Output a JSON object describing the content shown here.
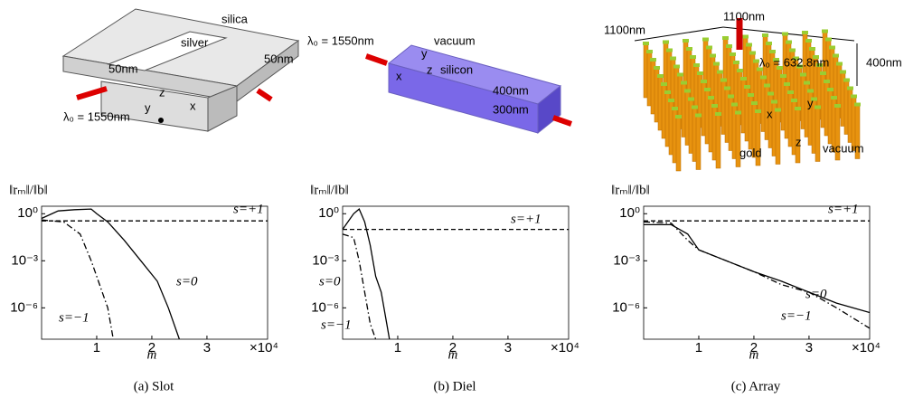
{
  "figure": {
    "panels": [
      {
        "caption": "(a) Slot",
        "labels": [
          "silica",
          "silver",
          "50nm",
          "50nm",
          "λ₀ = 1550nm",
          "z",
          "y",
          "x"
        ]
      },
      {
        "caption": "(b) Diel",
        "labels": [
          "λ₀ = 1550nm",
          "vacuum",
          "x",
          "y",
          "z",
          "silicon",
          "400nm",
          "300nm"
        ]
      },
      {
        "caption": "(c) Array",
        "labels": [
          "1100nm",
          "1100nm",
          "λ₀ = 632.8nm",
          "400nm",
          "x",
          "y",
          "z",
          "gold",
          "vacuum"
        ]
      }
    ]
  },
  "chart_data": [
    {
      "type": "line",
      "log_y": true,
      "y_label": "‖rₘ‖/‖b‖",
      "x_label": "m",
      "x_multiplier": "×10⁴",
      "xlim": [
        0,
        4.1
      ],
      "xticks": [
        1,
        2,
        3
      ],
      "ylim": [
        1e-08,
        3
      ],
      "yticks": [
        {
          "value": 1e-06,
          "label": "10⁻⁶"
        },
        {
          "value": 0.001,
          "label": "10⁻³"
        },
        {
          "value": 1,
          "label": "10⁰"
        }
      ],
      "series": [
        {
          "name": "s=+1",
          "color": "#000000",
          "style": "dashed",
          "x": [
            0,
            4.1
          ],
          "values": [
            0.35,
            0.35
          ]
        },
        {
          "name": "s=0",
          "color": "#000000",
          "style": "solid",
          "x": [
            0,
            0.3,
            0.6,
            0.9,
            1.0,
            1.2,
            1.5,
            1.8,
            2.1,
            2.3,
            2.5
          ],
          "values": [
            0.5,
            1.5,
            1.8,
            2,
            1,
            0.3,
            0.02,
            0.001,
            5e-05,
            1e-06,
            1e-08
          ]
        },
        {
          "name": "s=−1",
          "color": "#000000",
          "style": "dashdot",
          "x": [
            0,
            0.4,
            0.7,
            0.9,
            1.0,
            1.1,
            1.2,
            1.3
          ],
          "values": [
            0.4,
            0.3,
            0.05,
            0.001,
            0.0001,
            1e-05,
            1e-06,
            1e-08
          ]
        }
      ]
    },
    {
      "type": "line",
      "log_y": true,
      "y_label": "‖rₘ‖/‖b‖",
      "x_label": "m",
      "x_multiplier": "×10⁴",
      "xlim": [
        0,
        4.1
      ],
      "xticks": [
        1,
        2,
        3
      ],
      "ylim": [
        1e-08,
        3
      ],
      "yticks": [
        {
          "value": 1e-06,
          "label": "10⁻⁶"
        },
        {
          "value": 0.001,
          "label": "10⁻³"
        },
        {
          "value": 1,
          "label": "10⁰"
        }
      ],
      "series": [
        {
          "name": "s=+1",
          "color": "#000000",
          "style": "dashed",
          "x": [
            0,
            4.1
          ],
          "values": [
            0.1,
            0.1
          ]
        },
        {
          "name": "s=0",
          "color": "#000000",
          "style": "solid",
          "x": [
            0,
            0.2,
            0.3,
            0.4,
            0.5,
            0.6,
            0.7,
            0.8,
            0.85
          ],
          "values": [
            0.1,
            1,
            2,
            0.3,
            0.01,
            0.0001,
            1e-05,
            1e-07,
            1e-08
          ]
        },
        {
          "name": "s=−1",
          "color": "#000000",
          "style": "dashdot",
          "x": [
            0,
            0.2,
            0.3,
            0.4,
            0.5,
            0.6
          ],
          "values": [
            0.05,
            0.03,
            0.001,
            1e-05,
            1e-07,
            1e-08
          ]
        }
      ]
    },
    {
      "type": "line",
      "log_y": true,
      "y_label": "‖rₘ‖/‖b‖",
      "x_label": "m",
      "x_multiplier": "×10⁴",
      "xlim": [
        0,
        4.1
      ],
      "xticks": [
        1,
        2,
        3
      ],
      "ylim": [
        1e-08,
        3
      ],
      "yticks": [
        {
          "value": 1e-06,
          "label": "10⁻⁶"
        },
        {
          "value": 0.001,
          "label": "10⁻³"
        },
        {
          "value": 1,
          "label": "10⁰"
        }
      ],
      "series": [
        {
          "name": "s=+1",
          "color": "#000000",
          "style": "dashed",
          "x": [
            0,
            4.1
          ],
          "values": [
            0.35,
            0.35
          ]
        },
        {
          "name": "s=0",
          "color": "#000000",
          "style": "solid",
          "x": [
            0,
            0.5,
            0.8,
            1.0,
            1.5,
            2,
            2.5,
            3,
            3.5,
            4.1
          ],
          "values": [
            0.2,
            0.2,
            0.05,
            0.005,
            0.001,
            0.0002,
            5e-05,
            1e-05,
            2e-06,
            5e-07
          ]
        },
        {
          "name": "s=−1",
          "color": "#000000",
          "style": "dashdot",
          "x": [
            0,
            0.5,
            0.8,
            1,
            1.5,
            2,
            2.5,
            3,
            3.5,
            4.1
          ],
          "values": [
            0.3,
            0.25,
            0.02,
            0.005,
            0.001,
            0.0002,
            3e-05,
            1e-05,
            1e-06,
            5e-08
          ]
        }
      ]
    }
  ]
}
